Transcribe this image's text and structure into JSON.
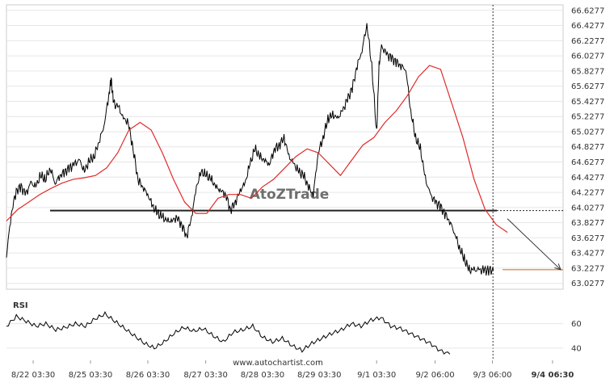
{
  "chart_data": [
    {
      "type": "line",
      "panel": "price",
      "y_ticks": [
        "66.6277",
        "66.4277",
        "66.2277",
        "66.0277",
        "65.8277",
        "65.6277",
        "65.4277",
        "65.2277",
        "65.0277",
        "64.8277",
        "64.6277",
        "64.4277",
        "64.2277",
        "64.0277",
        "63.8277",
        "63.6277",
        "63.4277",
        "63.2277",
        "63.0277"
      ],
      "ylim": [
        62.95,
        66.7
      ],
      "x_tick_labels": [
        "8/22 03:30",
        "8/25 03:30",
        "8/26 03:30",
        "8/27 03:30",
        "8/28 03:30",
        "8/29 03:30",
        "9/1 03:30",
        "9/2 06:00",
        "9/3 06:00",
        "9/4 06:30"
      ],
      "x_tick_bold_index": 9,
      "x_tick_positions": [
        0.048,
        0.151,
        0.254,
        0.358,
        0.46,
        0.562,
        0.665,
        0.77,
        0.873,
        0.981
      ],
      "x_range_end_fraction": 1.0,
      "series": [
        {
          "role": "price",
          "color": "#000000",
          "x": [
            0,
            0.01,
            0.02,
            0.03,
            0.04,
            0.05,
            0.06,
            0.07,
            0.08,
            0.09,
            0.1,
            0.11,
            0.12,
            0.13,
            0.14,
            0.15,
            0.16,
            0.17,
            0.18,
            0.19,
            0.2,
            0.21,
            0.215,
            0.22,
            0.23,
            0.24,
            0.25,
            0.26,
            0.27,
            0.28,
            0.29,
            0.3,
            0.31,
            0.32,
            0.33,
            0.34,
            0.35,
            0.36,
            0.37,
            0.38,
            0.39,
            0.4,
            0.41,
            0.42,
            0.43,
            0.44,
            0.45,
            0.46,
            0.47,
            0.48,
            0.49,
            0.5,
            0.51,
            0.52,
            0.53,
            0.54,
            0.55,
            0.56,
            0.57,
            0.58,
            0.59,
            0.6,
            0.61,
            0.62,
            0.63,
            0.64,
            0.65,
            0.66,
            0.67,
            0.68,
            0.69,
            0.7,
            0.71,
            0.72,
            0.73,
            0.74,
            0.75,
            0.76,
            0.765,
            0.77,
            0.78,
            0.79,
            0.8,
            0.81,
            0.82,
            0.83,
            0.84,
            0.85,
            0.86,
            0.87,
            0.88,
            0.89,
            0.9,
            0.91,
            0.92,
            0.93,
            0.94,
            0.95,
            0.96,
            0.97,
            0.98,
            0.99,
            1.0
          ],
          "y": [
            63.4,
            63.95,
            64.25,
            64.3,
            64.2,
            64.35,
            64.3,
            64.45,
            64.4,
            64.55,
            64.35,
            64.45,
            64.5,
            64.55,
            64.6,
            64.65,
            64.5,
            64.65,
            64.7,
            64.9,
            65.1,
            65.5,
            65.72,
            65.4,
            65.35,
            65.2,
            65.15,
            64.8,
            64.4,
            64.3,
            64.2,
            64.05,
            63.95,
            63.9,
            63.85,
            63.85,
            63.9,
            63.8,
            63.65,
            63.9,
            64.3,
            64.5,
            64.45,
            64.4,
            64.3,
            64.25,
            64.2,
            64.0,
            64.1,
            64.25,
            64.35,
            64.6,
            64.8,
            64.7,
            64.65,
            64.6,
            64.8,
            64.85,
            64.95,
            64.7,
            64.6,
            64.5,
            64.45,
            64.3,
            64.2,
            64.75,
            64.95,
            65.2,
            65.25,
            65.2,
            65.3,
            65.45,
            65.6,
            65.9,
            66.1,
            66.45,
            65.9,
            65.0,
            65.9,
            66.15,
            66.05,
            66.0,
            65.95,
            65.9,
            65.85,
            65.3,
            64.95,
            64.8,
            64.4,
            64.2,
            64.1,
            64.05,
            63.95,
            63.85,
            63.7,
            63.5,
            63.35,
            63.2,
            63.2,
            63.2,
            63.2,
            63.2,
            63.2
          ],
          "x_end": 0.875
        },
        {
          "role": "moving-average",
          "color": "#e02a2a",
          "x": [
            0,
            0.02,
            0.04,
            0.06,
            0.08,
            0.1,
            0.12,
            0.14,
            0.16,
            0.18,
            0.2,
            0.22,
            0.24,
            0.26,
            0.28,
            0.3,
            0.32,
            0.34,
            0.36,
            0.38,
            0.4,
            0.42,
            0.44,
            0.46,
            0.48,
            0.5,
            0.52,
            0.54,
            0.56,
            0.58,
            0.6,
            0.62,
            0.64,
            0.66,
            0.68,
            0.7,
            0.72,
            0.74,
            0.76,
            0.78,
            0.8,
            0.82,
            0.84,
            0.86,
            0.88,
            0.9
          ],
          "y": [
            63.85,
            64.0,
            64.1,
            64.2,
            64.28,
            64.35,
            64.4,
            64.42,
            64.45,
            64.55,
            64.75,
            65.05,
            65.15,
            65.05,
            64.75,
            64.4,
            64.1,
            63.95,
            63.95,
            64.15,
            64.2,
            64.2,
            64.15,
            64.3,
            64.4,
            64.55,
            64.7,
            64.8,
            64.75,
            64.6,
            64.45,
            64.65,
            64.85,
            64.95,
            65.15,
            65.3,
            65.5,
            65.75,
            65.9,
            65.85,
            65.4,
            64.95,
            64.4,
            64.0,
            63.8,
            63.7
          ]
        }
      ],
      "support_level": 63.9877,
      "support_value_label": "",
      "target_level": 63.2077,
      "vertical_marker_x_fraction": 0.874,
      "watermark": "AtoZTrade"
    },
    {
      "type": "line",
      "panel": "rsi",
      "title": "RSI",
      "y_ticks": [
        "60",
        "40"
      ],
      "ylim": [
        30,
        75
      ],
      "series": [
        {
          "role": "rsi",
          "color": "#000000",
          "x": [
            0,
            0.02,
            0.04,
            0.06,
            0.08,
            0.1,
            0.12,
            0.14,
            0.16,
            0.18,
            0.2,
            0.22,
            0.24,
            0.26,
            0.28,
            0.3,
            0.32,
            0.34,
            0.36,
            0.38,
            0.4,
            0.42,
            0.44,
            0.46,
            0.48,
            0.5,
            0.52,
            0.54,
            0.56,
            0.58,
            0.6,
            0.62,
            0.64,
            0.66,
            0.68,
            0.7,
            0.72,
            0.74,
            0.76,
            0.78,
            0.8,
            0.82,
            0.84,
            0.86,
            0.88,
            0.9
          ],
          "y": [
            58,
            66,
            62,
            58,
            60,
            55,
            57,
            60,
            58,
            64,
            68,
            62,
            56,
            50,
            44,
            40,
            45,
            52,
            57,
            54,
            56,
            50,
            45,
            53,
            55,
            58,
            49,
            45,
            48,
            42,
            38,
            44,
            48,
            52,
            55,
            60,
            58,
            63,
            65,
            58,
            56,
            52,
            48,
            44,
            38,
            35
          ]
        }
      ]
    }
  ],
  "footer": {
    "source": "www.autochartist.com"
  },
  "colors": {
    "price_line": "#000000",
    "ma_line": "#e02a2a",
    "support_line": "#222222",
    "target_line": "#e07030",
    "grid": "#e6e6e6",
    "marker": "#333333"
  }
}
